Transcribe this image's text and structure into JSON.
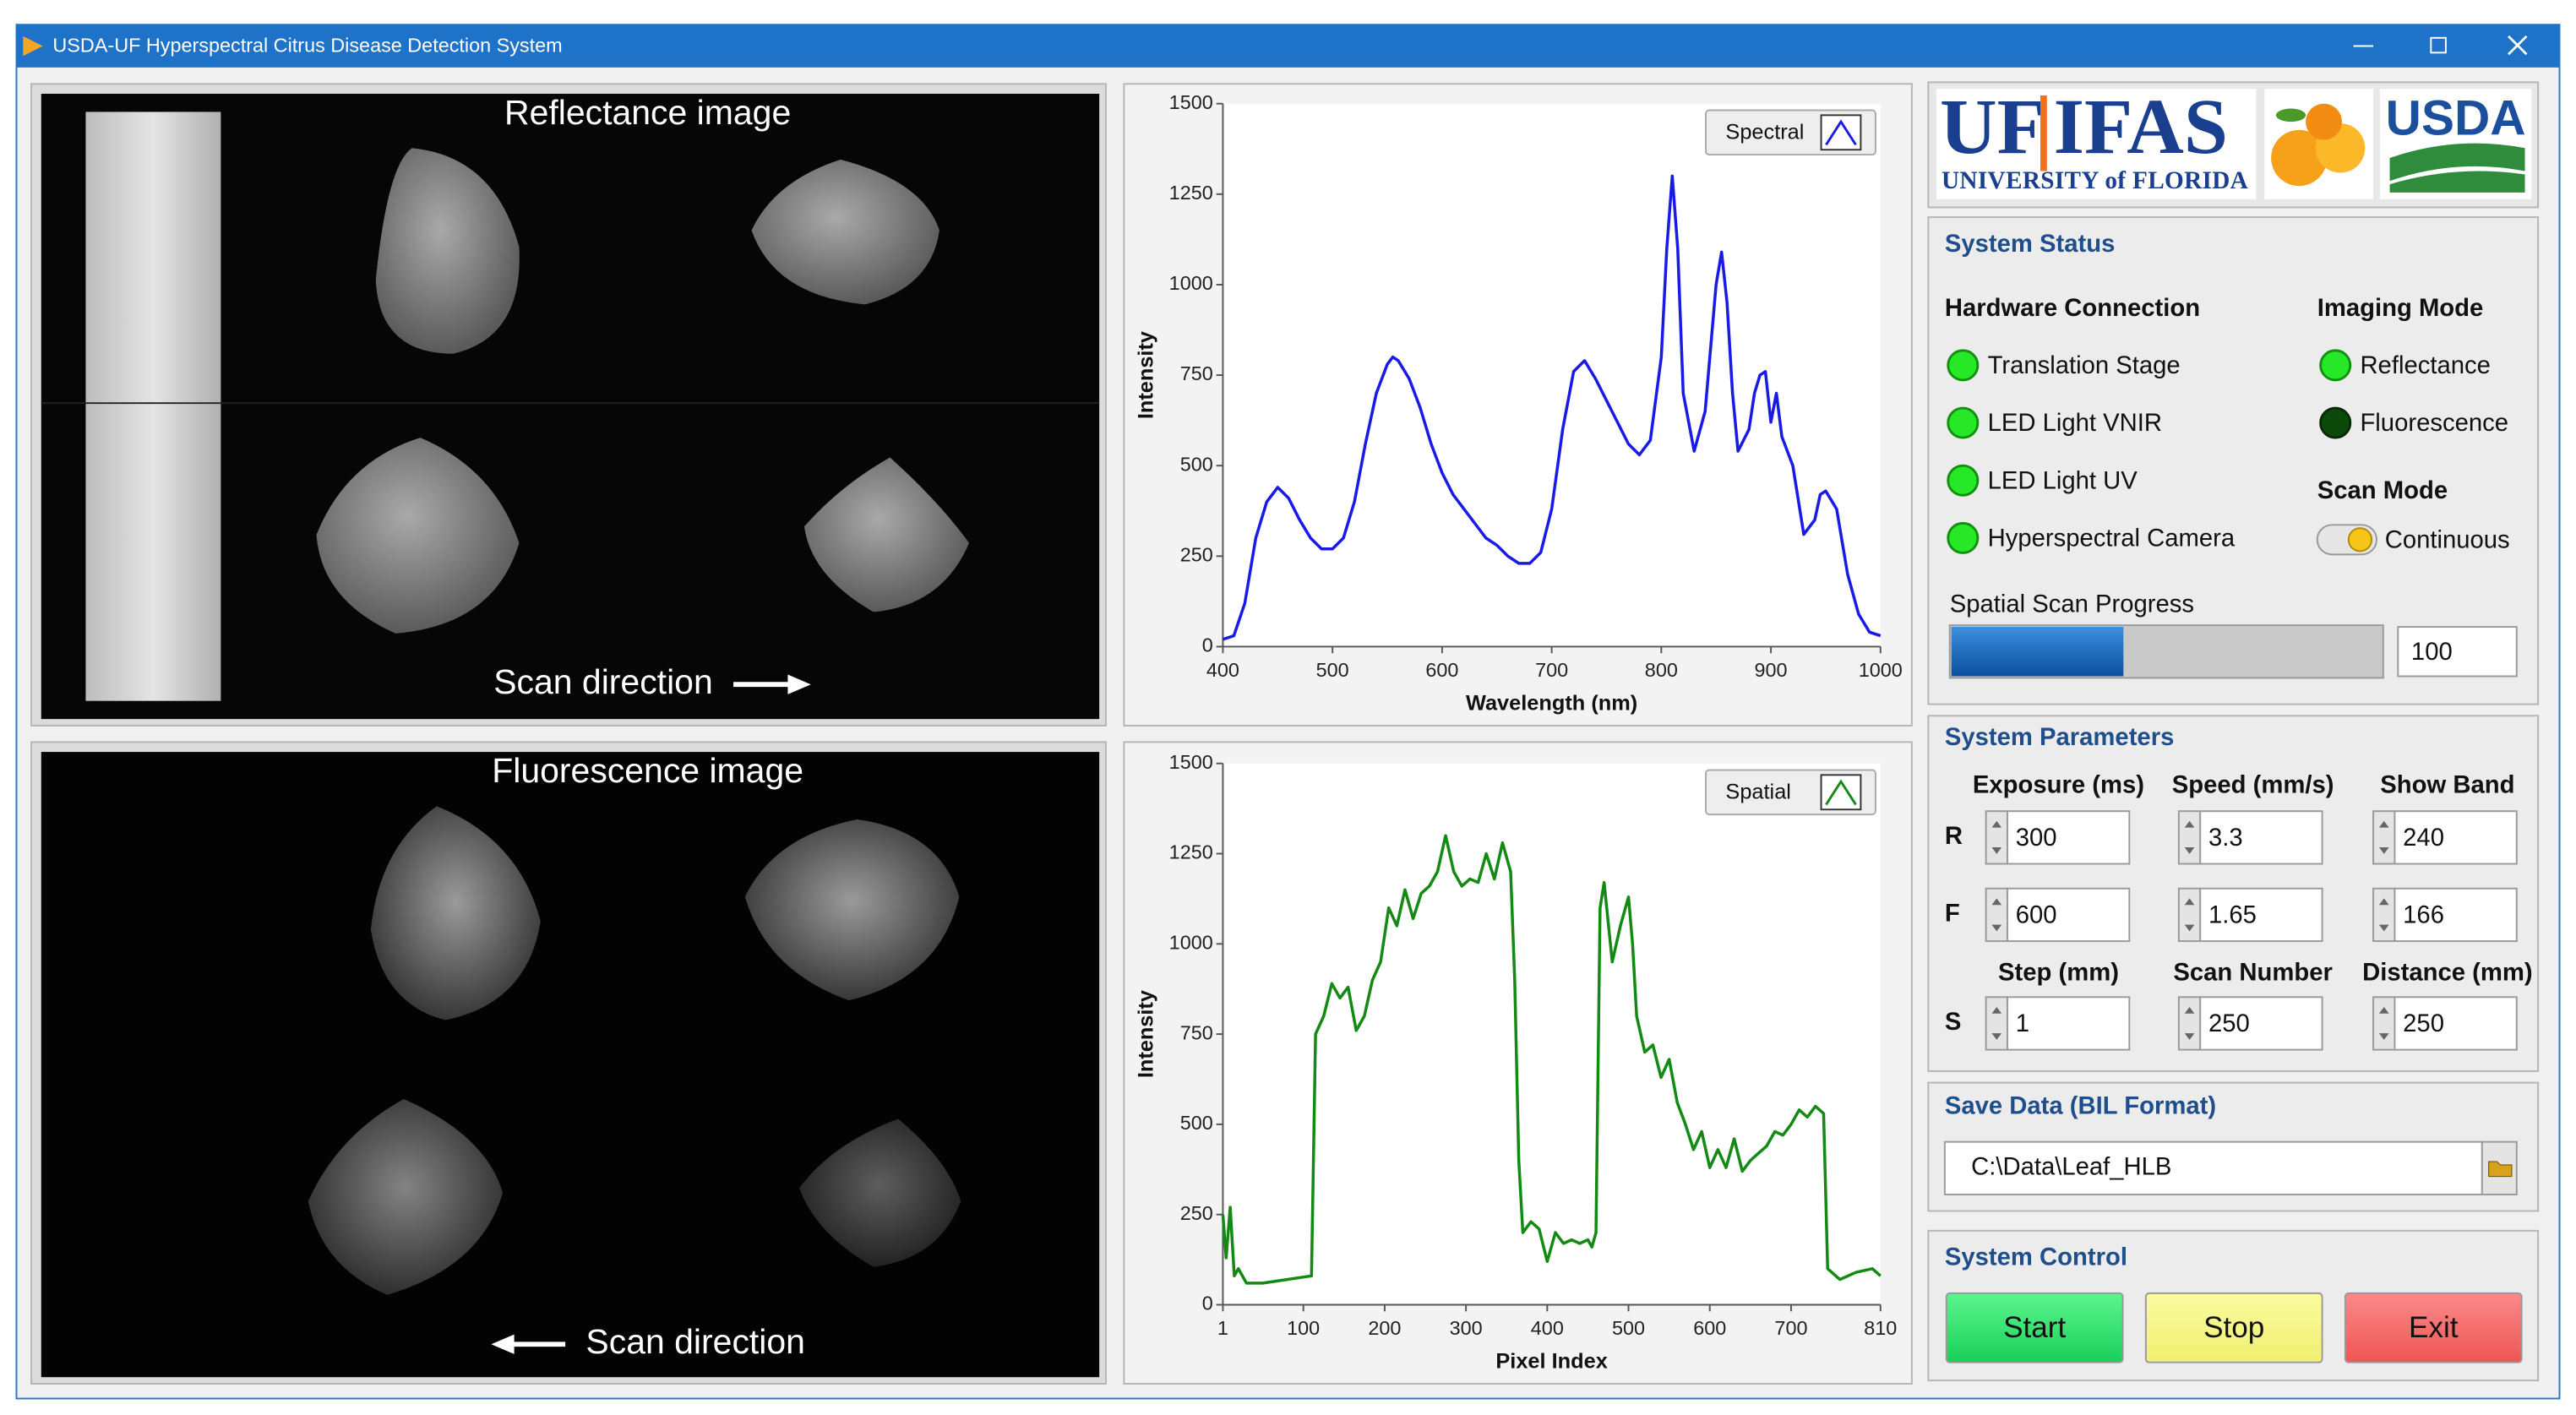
{
  "window": {
    "title": "USDA-UF Hyperspectral Citrus Disease Detection System"
  },
  "reflectance_panel": {
    "title": "Reflectance image",
    "scan_label": "Scan direction"
  },
  "fluorescence_panel": {
    "title": "Fluorescence image",
    "scan_label": "Scan direction"
  },
  "chart_data": [
    {
      "type": "line",
      "xlabel": "Wavelength (nm)",
      "ylabel": "Intensity",
      "xlim": [
        400,
        1000
      ],
      "ylim": [
        0,
        1500
      ],
      "xticks": [
        400,
        500,
        600,
        700,
        800,
        900,
        1000
      ],
      "yticks": [
        0,
        250,
        500,
        750,
        1000,
        1250,
        1500
      ],
      "legend": "top-right",
      "x": [
        400,
        410,
        420,
        430,
        440,
        450,
        460,
        470,
        480,
        490,
        500,
        510,
        520,
        530,
        540,
        550,
        555,
        560,
        570,
        580,
        590,
        600,
        610,
        620,
        630,
        640,
        650,
        660,
        670,
        680,
        690,
        700,
        710,
        720,
        730,
        740,
        750,
        760,
        770,
        780,
        790,
        800,
        805,
        810,
        815,
        820,
        830,
        840,
        850,
        855,
        860,
        865,
        870,
        880,
        885,
        890,
        895,
        900,
        905,
        910,
        920,
        930,
        940,
        945,
        950,
        960,
        970,
        980,
        990,
        1000
      ],
      "series": [
        {
          "name": "Spectral",
          "color": "#1a1ae6",
          "values": [
            20,
            30,
            120,
            300,
            400,
            440,
            410,
            350,
            300,
            270,
            270,
            300,
            400,
            560,
            700,
            780,
            800,
            790,
            740,
            660,
            560,
            480,
            420,
            380,
            340,
            300,
            280,
            250,
            230,
            230,
            260,
            380,
            600,
            760,
            790,
            740,
            680,
            620,
            560,
            530,
            570,
            800,
            1100,
            1300,
            1100,
            700,
            540,
            650,
            1000,
            1090,
            950,
            700,
            540,
            600,
            700,
            750,
            760,
            620,
            700,
            580,
            500,
            310,
            350,
            420,
            430,
            380,
            200,
            90,
            40,
            30
          ]
        }
      ]
    },
    {
      "type": "line",
      "xlabel": "Pixel Index",
      "ylabel": "Intensity",
      "xlim": [
        1,
        810
      ],
      "ylim": [
        0,
        1500
      ],
      "xticks": [
        1,
        100,
        200,
        300,
        400,
        500,
        600,
        700,
        810
      ],
      "yticks": [
        0,
        250,
        500,
        750,
        1000,
        1250,
        1500
      ],
      "legend": "top-right",
      "x": [
        1,
        5,
        10,
        15,
        20,
        30,
        50,
        80,
        110,
        115,
        125,
        135,
        145,
        155,
        165,
        175,
        185,
        195,
        205,
        215,
        225,
        235,
        245,
        255,
        265,
        275,
        285,
        295,
        305,
        315,
        325,
        335,
        345,
        355,
        360,
        365,
        370,
        380,
        390,
        400,
        410,
        420,
        430,
        440,
        450,
        455,
        460,
        465,
        470,
        480,
        490,
        500,
        505,
        510,
        520,
        530,
        540,
        550,
        560,
        570,
        580,
        590,
        600,
        610,
        620,
        630,
        640,
        650,
        660,
        670,
        680,
        690,
        700,
        710,
        720,
        730,
        740,
        745,
        760,
        780,
        800,
        810
      ],
      "series": [
        {
          "name": "Spatial",
          "color": "#138a13",
          "values": [
            250,
            130,
            270,
            80,
            100,
            60,
            60,
            70,
            80,
            750,
            800,
            890,
            850,
            880,
            760,
            800,
            900,
            950,
            1100,
            1050,
            1150,
            1070,
            1140,
            1160,
            1200,
            1300,
            1200,
            1160,
            1180,
            1170,
            1250,
            1180,
            1280,
            1200,
            900,
            400,
            200,
            230,
            210,
            120,
            200,
            170,
            180,
            170,
            180,
            160,
            200,
            1100,
            1170,
            950,
            1050,
            1130,
            1000,
            800,
            700,
            720,
            630,
            680,
            560,
            500,
            430,
            480,
            380,
            430,
            380,
            460,
            370,
            400,
            420,
            440,
            480,
            470,
            500,
            540,
            520,
            550,
            530,
            100,
            70,
            90,
            100,
            80
          ]
        }
      ]
    }
  ],
  "logo": {
    "uf": "UF",
    "ifas": "IFAS",
    "university": "UNIVERSITY of FLORIDA",
    "usda": "USDA"
  },
  "system_status": {
    "title": "System Status",
    "hardware": {
      "title": "Hardware Connection",
      "items": [
        {
          "label": "Translation Stage",
          "on": true
        },
        {
          "label": "LED Light VNIR",
          "on": true
        },
        {
          "label": "LED Light UV",
          "on": true
        },
        {
          "label": "Hyperspectral Camera",
          "on": true
        }
      ]
    },
    "imaging": {
      "title": "Imaging Mode",
      "items": [
        {
          "label": "Reflectance",
          "on": true
        },
        {
          "label": "Fluorescence",
          "on": false
        }
      ]
    },
    "scan_mode": {
      "title": "Scan Mode",
      "label": "Continuous"
    },
    "progress": {
      "label": "Spatial Scan Progress",
      "value": 100
    }
  },
  "system_parameters": {
    "title": "System Parameters",
    "columns": [
      [
        "Exposure (ms)",
        "Speed (mm/s)",
        "Show Band"
      ],
      [
        "Step (mm)",
        "Scan Number",
        "Distance (mm)"
      ]
    ],
    "rows": [
      {
        "label": "R",
        "values": [
          300,
          3.3,
          240
        ]
      },
      {
        "label": "F",
        "values": [
          600,
          1.65,
          166
        ]
      },
      {
        "label": "S",
        "values": [
          1,
          250,
          250
        ]
      }
    ]
  },
  "save_data": {
    "title": "Save Data (BIL Format)",
    "path": "C:\\Data\\Leaf_HLB"
  },
  "system_control": {
    "title": "System Control",
    "buttons": [
      "Start",
      "Stop",
      "Exit"
    ]
  }
}
